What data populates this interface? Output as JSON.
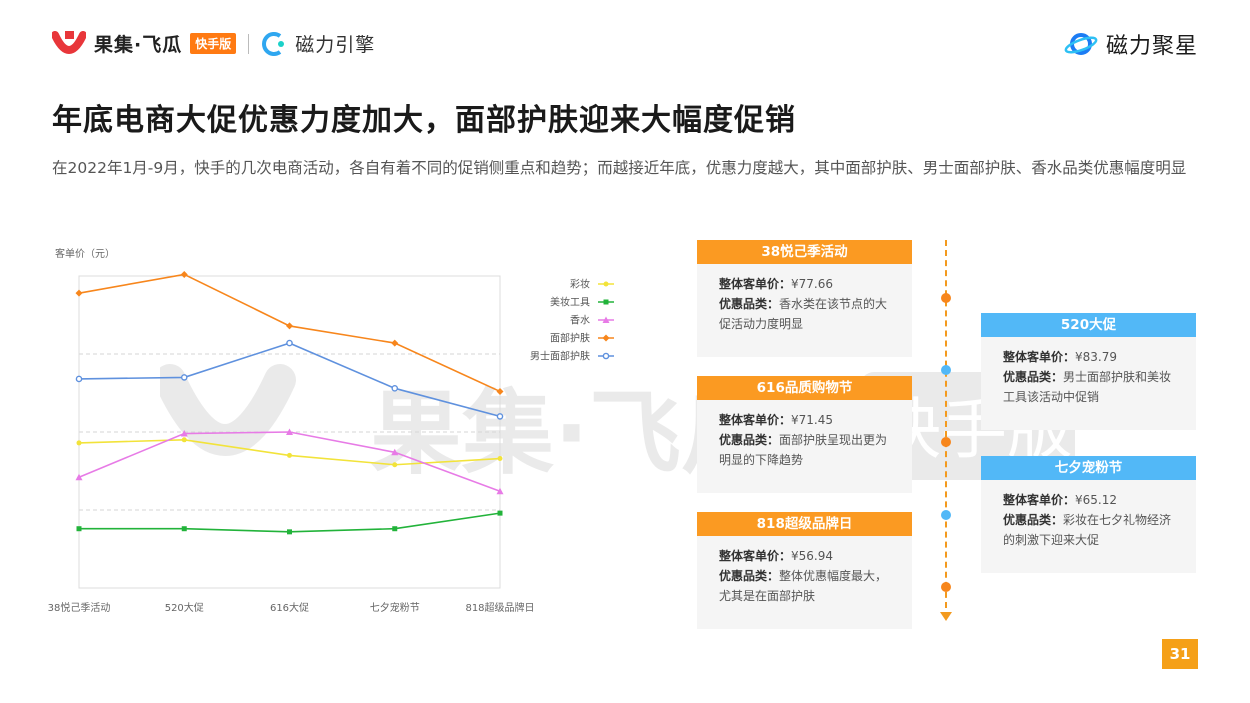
{
  "header": {
    "brand_name": "果集·飞瓜",
    "brand_badge": "快手版",
    "partner_name": "磁力引擎",
    "right_logo_name": "磁力聚星"
  },
  "page": {
    "title": "年底电商大促优惠力度加大，面部护肤迎来大幅度促销",
    "subtitle": "在2022年1月-9月，快手的几次电商活动，各自有着不同的促销侧重点和趋势；而越接近年底，优惠力度越大，其中面部护肤、男士面部护肤、香水品类优惠幅度明显",
    "page_number": "31"
  },
  "chart_data": {
    "type": "line",
    "ylabel": "客单价（元）",
    "categories": [
      "38悦己季活动",
      "520大促",
      "616大促",
      "七夕宠粉节",
      "818超级品牌日"
    ],
    "ylim": [
      0,
      200
    ],
    "grid": "dashed horizontal",
    "legend_position": "top-right",
    "series": [
      {
        "name": "彩妆",
        "color": "#f2e33a",
        "marker": "circle",
        "values": [
          93,
          95,
          85,
          79,
          83
        ]
      },
      {
        "name": "美妆工具",
        "color": "#22b33a",
        "marker": "square",
        "values": [
          38,
          38,
          36,
          38,
          48
        ]
      },
      {
        "name": "香水",
        "color": "#e77be6",
        "marker": "triangle",
        "values": [
          71,
          99,
          100,
          87,
          62
        ]
      },
      {
        "name": "面部护肤",
        "color": "#f7861c",
        "marker": "diamond",
        "values": [
          189,
          201,
          168,
          157,
          126
        ]
      },
      {
        "name": "男士面部护肤",
        "color": "#5f91de",
        "marker": "open-circle",
        "values": [
          134,
          135,
          157,
          128,
          110
        ]
      }
    ]
  },
  "timeline": {
    "events": [
      {
        "title": "38悦己季活动",
        "price_label": "整体客单价：",
        "price": "¥77.66",
        "category_label": "优惠品类：",
        "category": "香水类在该节点的大促活动力度明显",
        "color": "#fb9a22"
      },
      {
        "title": "520大促",
        "price_label": "整体客单价：",
        "price": "¥83.79",
        "category_label": "优惠品类：",
        "category": "男士面部护肤和美妆工具该活动中促销",
        "color": "#52b8f7"
      },
      {
        "title": "616品质购物节",
        "price_label": "整体客单价：",
        "price": "¥71.45",
        "category_label": "优惠品类：",
        "category": "面部护肤呈现出更为明显的下降趋势",
        "color": "#fb9a22"
      },
      {
        "title": "七夕宠粉节",
        "price_label": "整体客单价：",
        "price": "¥65.12",
        "category_label": "优惠品类：",
        "category": "彩妆在七夕礼物经济的刺激下迎来大促",
        "color": "#52b8f7"
      },
      {
        "title": "818超级品牌日",
        "price_label": "整体客单价：",
        "price": "¥56.94",
        "category_label": "优惠品类：",
        "category": "整体优惠幅度最大，尤其是在面部护肤",
        "color": "#fb9a22"
      }
    ]
  },
  "watermark": {
    "text": "果集·飞瓜",
    "badge": "快手版"
  }
}
